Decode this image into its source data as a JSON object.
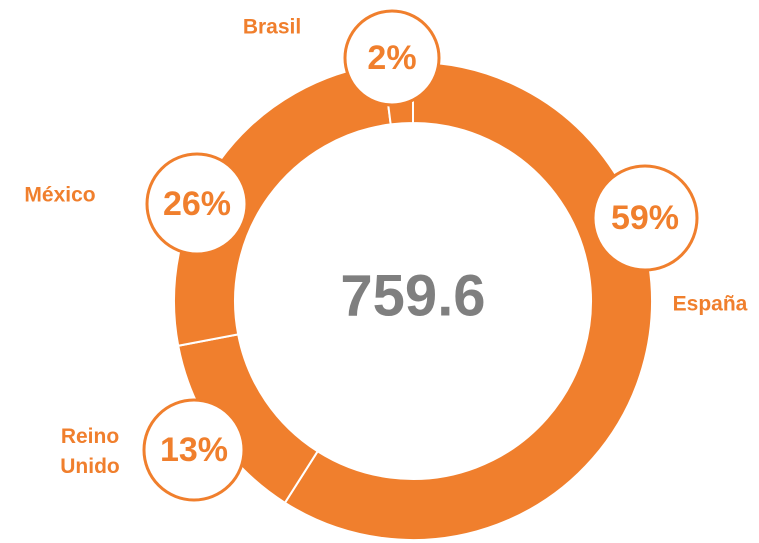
{
  "chart_data": {
    "type": "donut",
    "center_label": "759.6",
    "categories": [
      "España",
      "Reino Unido",
      "México",
      "Brasil"
    ],
    "values": [
      59,
      13,
      26,
      2
    ],
    "value_labels": [
      "59%",
      "13%",
      "26%",
      "2%"
    ],
    "color": "#f07f2d"
  }
}
